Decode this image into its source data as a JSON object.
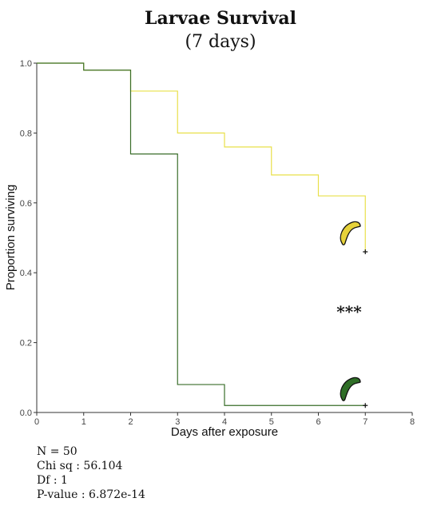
{
  "chart_data": {
    "type": "line",
    "step": true,
    "title": "Larvae Survival",
    "subtitle": "(7 days)",
    "xlabel": "Days after exposure",
    "ylabel": "Proportion surviving",
    "xlim": [
      0,
      8
    ],
    "ylim": [
      0,
      1
    ],
    "xticks": [
      0,
      1,
      2,
      3,
      4,
      5,
      6,
      7,
      8
    ],
    "yticks": [
      "0.0",
      "0.2",
      "0.4",
      "0.6",
      "0.8",
      "1.0"
    ],
    "grid": false,
    "legend": "none",
    "annotation": "***",
    "series": [
      {
        "color": "#e8e04a",
        "icon_color": "#e6d23a",
        "points": [
          [
            0,
            1.0
          ],
          [
            1,
            0.98
          ],
          [
            2,
            0.92
          ],
          [
            3,
            0.8
          ],
          [
            4,
            0.76
          ],
          [
            5,
            0.68
          ],
          [
            6,
            0.62
          ],
          [
            7,
            0.46
          ]
        ],
        "censor": [
          7,
          0.46
        ]
      },
      {
        "color": "#3a6e2a",
        "icon_color": "#2f6e27",
        "points": [
          [
            0,
            1.0
          ],
          [
            1,
            0.98
          ],
          [
            2,
            0.74
          ],
          [
            3,
            0.08
          ],
          [
            4,
            0.02
          ],
          [
            7,
            0.02
          ]
        ],
        "censor": [
          7,
          0.02
        ]
      }
    ]
  },
  "stats": {
    "n": "N = 50",
    "chisq": "Chi sq : 56.104",
    "df": "Df : 1",
    "pvalue": "P-value : 6.872e-14"
  }
}
